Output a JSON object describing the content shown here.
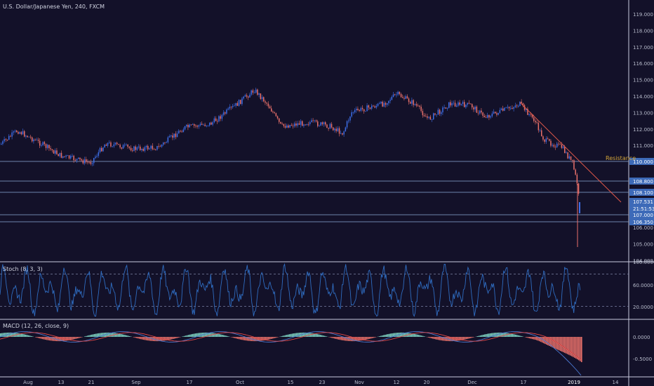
{
  "chart_title": "U.S. Dollar/Japanese Yen, 240, FXCM",
  "resistance_label": "Resistance",
  "colors": {
    "background": "#131129",
    "up": "#3d6ee8",
    "down": "#e8706a",
    "hline": "#8ea8d8",
    "resistance": "#e0584a",
    "resistance_text": "#d4a63a",
    "axis_text": "#b8bccc",
    "stoch": "#2f6cc0",
    "macd": "#4a78d0",
    "signal": "#e04848",
    "hist_pos": "#7fd6c4",
    "hist_neg": "#e8706a",
    "badge": "#3d6ab8"
  },
  "x_axis_labels": [
    "Aug",
    "13",
    "21",
    "Sep",
    "17",
    "Oct",
    "15",
    "23",
    "Nov",
    "12",
    "20",
    "Dec",
    "17",
    "2019",
    "14"
  ],
  "chart_data": {
    "type": "candlestick",
    "price_axis_labels": [
      "119.000",
      "118.000",
      "117.000",
      "116.000",
      "115.000",
      "114.000",
      "113.000",
      "112.000",
      "111.000",
      "106.000",
      "105.000",
      "104.000"
    ],
    "price_range": [
      104.0,
      119.4
    ],
    "ohlc_path": [
      [
        "Aug",
        111.2
      ],
      [
        "Aug",
        111.9
      ],
      [
        "Aug",
        111.2
      ],
      [
        "13",
        111.4
      ],
      [
        "13",
        110.8
      ],
      [
        "21",
        110.4
      ],
      [
        "21",
        111.2
      ],
      [
        "21",
        111.0
      ],
      [
        "Sep",
        111.6
      ],
      [
        "Sep",
        111.1
      ],
      [
        "Sep",
        111.9
      ],
      [
        "17",
        112.3
      ],
      [
        "17",
        112.7
      ],
      [
        "17",
        112.4
      ],
      [
        "17",
        113.1
      ],
      [
        "Oct",
        114.0
      ],
      [
        "Oct",
        114.5
      ],
      [
        "Oct",
        113.6
      ],
      [
        "15",
        112.2
      ],
      [
        "15",
        112.7
      ],
      [
        "23",
        112.3
      ],
      [
        "23",
        112.6
      ],
      [
        "23",
        111.9
      ],
      [
        "Nov",
        113.2
      ],
      [
        "Nov",
        113.8
      ],
      [
        "12",
        114.0
      ],
      [
        "12",
        113.6
      ],
      [
        "20",
        112.6
      ],
      [
        "20",
        113.0
      ],
      [
        "Dec",
        113.8
      ],
      [
        "Dec",
        113.2
      ],
      [
        "Dec",
        112.8
      ],
      [
        "17",
        113.3
      ],
      [
        "17",
        113.4
      ],
      [
        "17",
        112.4
      ],
      [
        "17",
        111.2
      ],
      [
        "17",
        110.6
      ],
      [
        "2019",
        109.5
      ],
      [
        "2019",
        107.3
      ]
    ],
    "horizontal_levels": [
      {
        "value": 110.0,
        "badge": "110.000"
      },
      {
        "value": 108.8,
        "badge": "108.800"
      },
      {
        "value": 108.1,
        "badge": "108.100"
      },
      {
        "value": 107.4,
        "badge": "107.531"
      },
      {
        "value": 106.9,
        "badge": "21:51:53"
      },
      {
        "value": 106.4,
        "badge": "107.000"
      },
      {
        "value": 106.35,
        "badge": "106.350"
      }
    ],
    "stoch": {
      "label": "Stoch (8, 3, 3)",
      "axis_labels": [
        "100.0000",
        "60.0000",
        "20.0000"
      ],
      "range": [
        0,
        100
      ],
      "bands": [
        80,
        20
      ]
    },
    "macd": {
      "label": "MACD (12, 26, close, 9)",
      "axis_labels": [
        "0.0000",
        "-0.5000"
      ],
      "range": [
        -0.95,
        0.25
      ]
    }
  }
}
